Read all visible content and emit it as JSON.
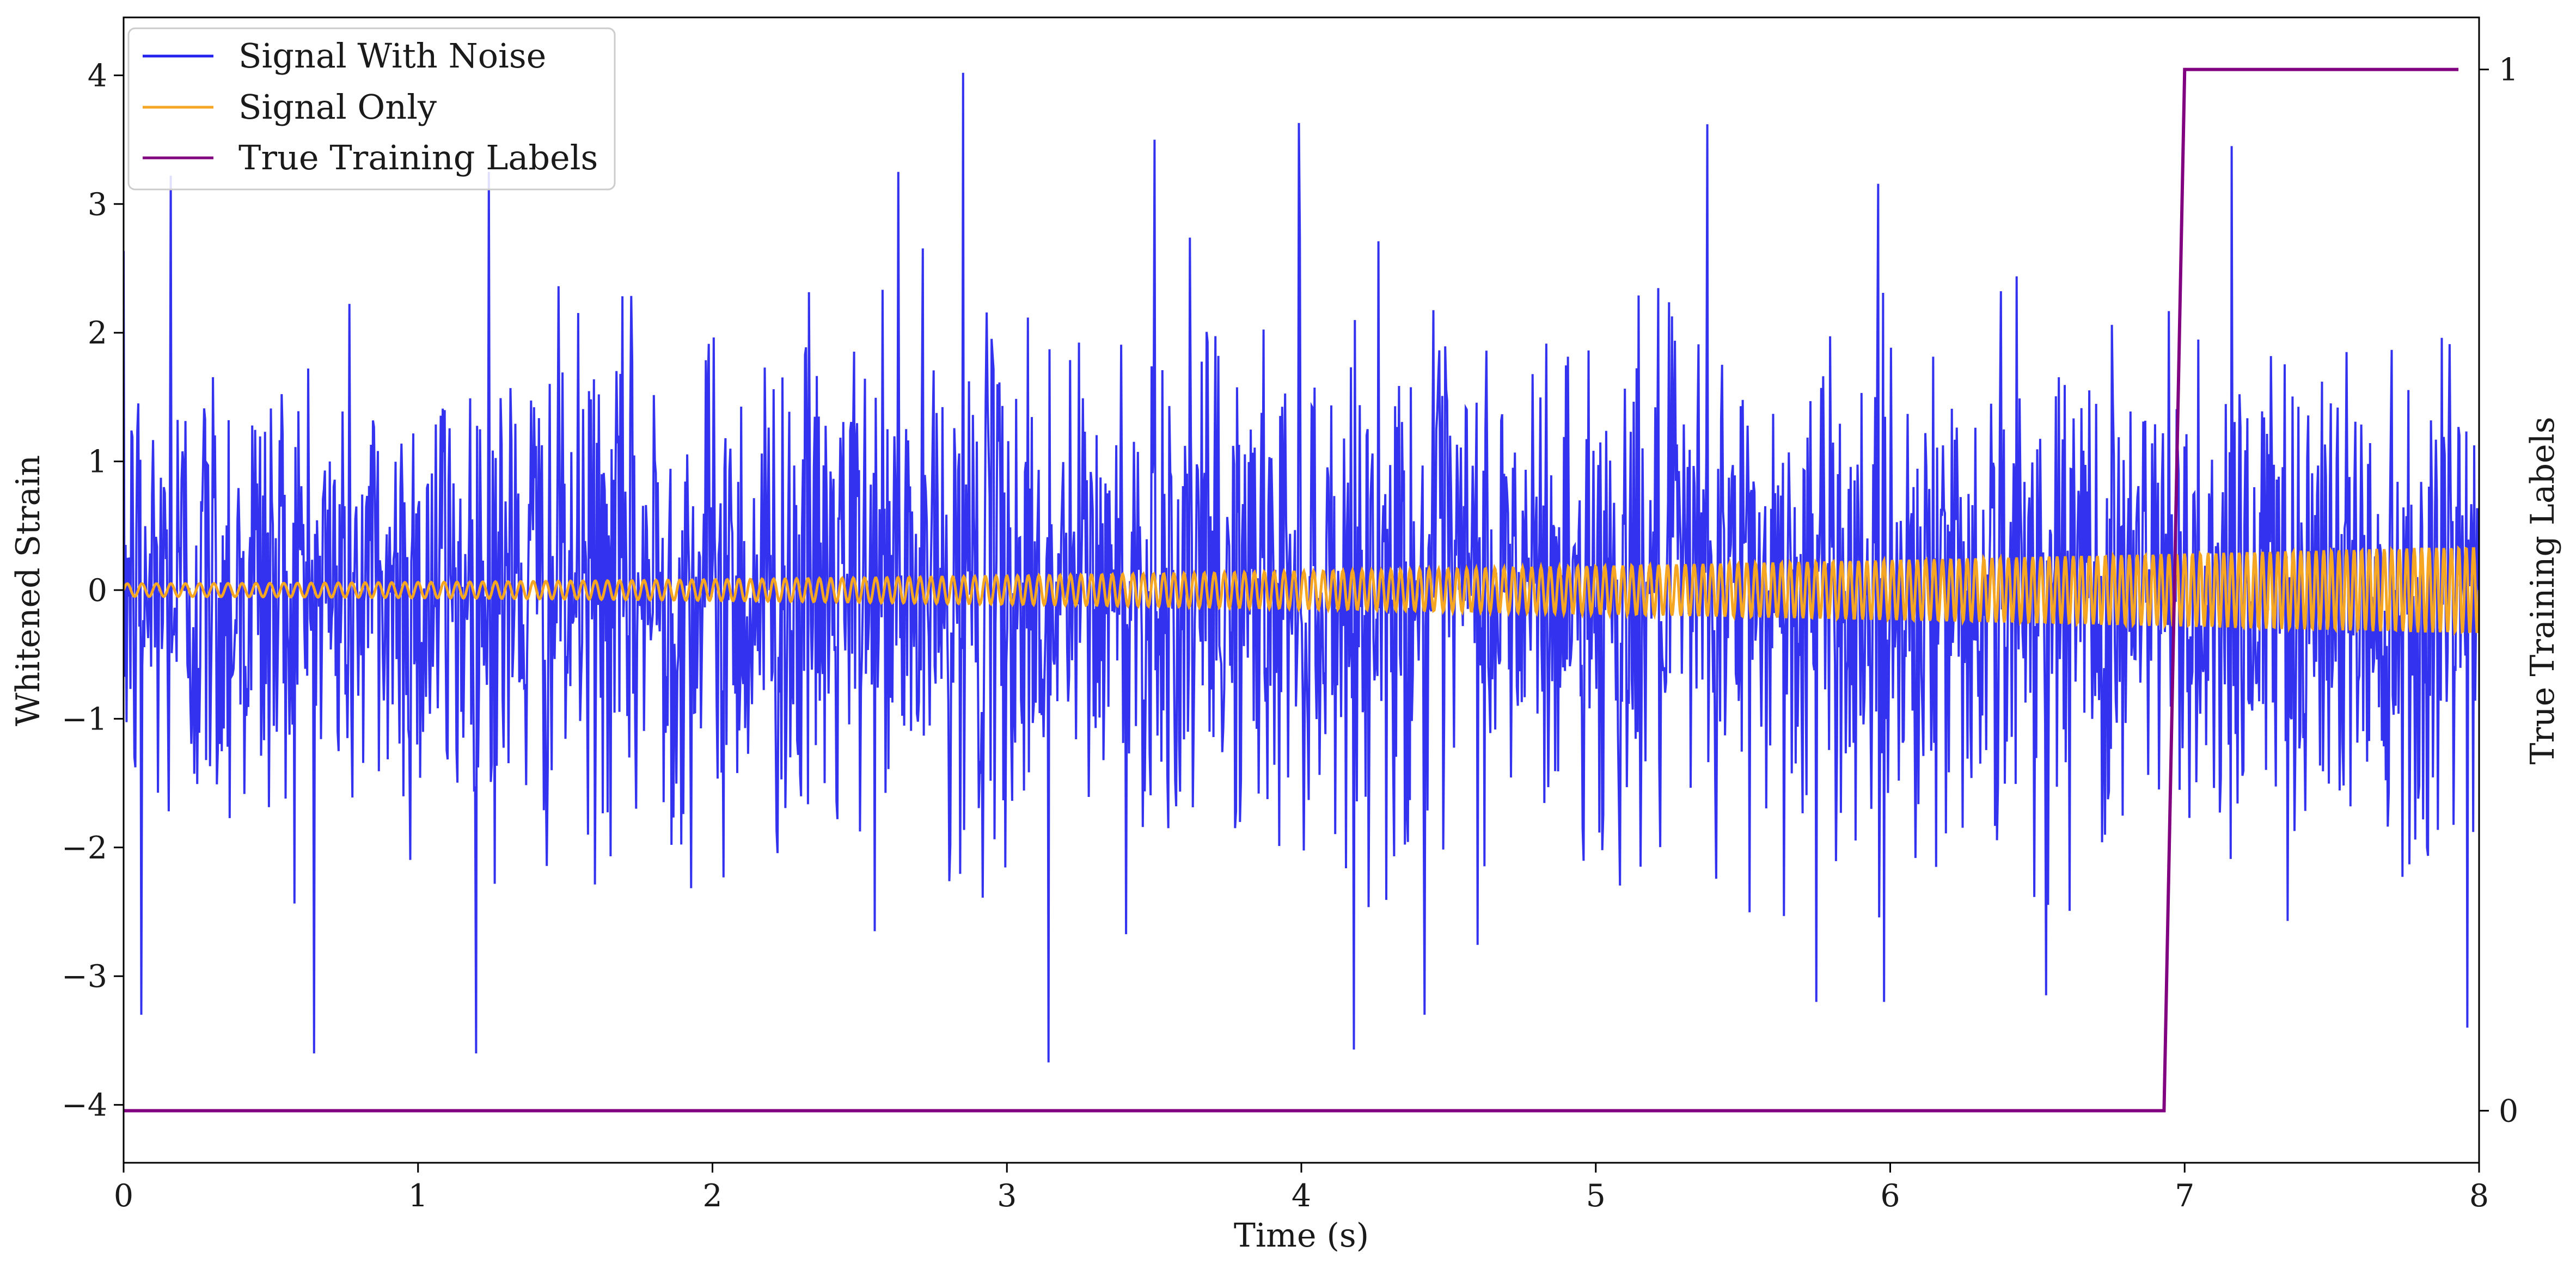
{
  "chart_data": {
    "type": "line",
    "title": "",
    "xlabel": "Time (s)",
    "ylabel": "Whitened Strain",
    "y2label": "True Training Labels",
    "xlim": [
      0,
      8
    ],
    "ylim": [
      -4.45,
      4.45
    ],
    "y2lim": [
      -0.05,
      1.05
    ],
    "xticks": [
      0,
      1,
      2,
      3,
      4,
      5,
      6,
      7,
      8
    ],
    "xtick_labels": [
      "0",
      "1",
      "2",
      "3",
      "4",
      "5",
      "6",
      "7",
      "8"
    ],
    "yticks": [
      -4,
      -3,
      -2,
      -1,
      0,
      1,
      2,
      3,
      4
    ],
    "ytick_labels": [
      "−4",
      "−3",
      "−2",
      "−1",
      "0",
      "1",
      "2",
      "3",
      "4"
    ],
    "y2ticks": [
      0,
      1
    ],
    "y2tick_labels": [
      "0",
      "1"
    ],
    "grid": false,
    "legend": {
      "placement": "upper-left",
      "entries": [
        {
          "label": "Signal With Noise",
          "color": "#2222ee"
        },
        {
          "label": "Signal Only",
          "color": "#f5a623"
        },
        {
          "label": "True Training Labels",
          "color": "#800080"
        }
      ]
    },
    "series": [
      {
        "name": "Signal With Noise",
        "color": "#2222ee",
        "kind": "noise",
        "std": 0.95,
        "num_points": 2400,
        "notable_peaks": [
          {
            "x": 0.16,
            "y": 3.22
          },
          {
            "x": 1.24,
            "y": 3.25
          },
          {
            "x": 2.63,
            "y": 3.25
          },
          {
            "x": 2.85,
            "y": 4.02
          },
          {
            "x": 3.5,
            "y": 3.5
          },
          {
            "x": 3.99,
            "y": 3.63
          },
          {
            "x": 5.38,
            "y": 3.62
          },
          {
            "x": 7.16,
            "y": 3.45
          },
          {
            "x": 3.14,
            "y": -3.67
          },
          {
            "x": 0.06,
            "y": -3.3
          },
          {
            "x": 4.42,
            "y": -3.3
          },
          {
            "x": 7.96,
            "y": -3.4
          },
          {
            "x": 5.75,
            "y": -3.2
          },
          {
            "x": 5.98,
            "y": -3.2
          }
        ]
      },
      {
        "name": "Signal Only",
        "color": "#f5a623",
        "kind": "chirp",
        "amplitude_start": 0.05,
        "amplitude_end": 0.34,
        "frequency_start_hz": 20,
        "frequency_end_hz": 40
      },
      {
        "name": "True Training Labels",
        "color": "#800080",
        "kind": "step",
        "axis": "right",
        "x": [
          0,
          6.93,
          7.0,
          7.93
        ],
        "y": [
          0,
          0,
          1,
          1
        ]
      }
    ]
  }
}
